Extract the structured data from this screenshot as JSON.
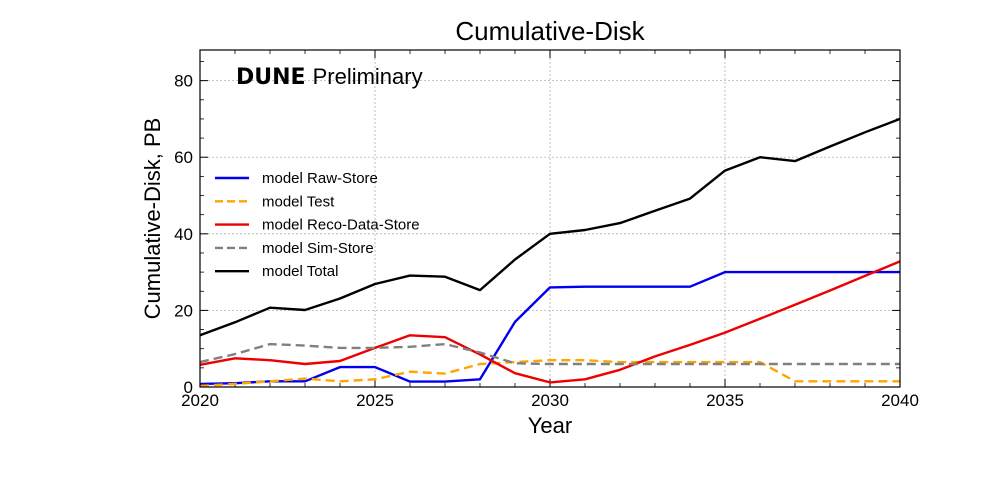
{
  "chart_data": {
    "type": "line",
    "title": "Cumulative-Disk",
    "xlabel": "Year",
    "ylabel": "Cumulative-Disk, PB",
    "annotation": {
      "bold": "DUNE",
      "regular": "Preliminary"
    },
    "xlim": [
      2020,
      2040
    ],
    "ylim": [
      0,
      88
    ],
    "xticks": [
      2020,
      2025,
      2030,
      2035,
      2040
    ],
    "yticks": [
      0,
      20,
      40,
      60,
      80
    ],
    "grid": true,
    "legend_position": "center-left",
    "x": [
      2020,
      2021,
      2022,
      2023,
      2024,
      2025,
      2026,
      2027,
      2028,
      2029,
      2030,
      2031,
      2032,
      2033,
      2034,
      2035,
      2036,
      2037,
      2038,
      2039,
      2040
    ],
    "series": [
      {
        "name": "model Raw-Store",
        "color": "#0000ee",
        "dash": "solid",
        "values": [
          0.8,
          1.0,
          1.5,
          1.5,
          5.2,
          5.2,
          1.4,
          1.4,
          2.0,
          17.0,
          26.0,
          26.2,
          26.2,
          26.2,
          26.2,
          30.0,
          30.0,
          30.0,
          30.0,
          30.0,
          30.0
        ]
      },
      {
        "name": "model Test",
        "color": "#ffa500",
        "dash": "dashed",
        "values": [
          0.3,
          0.8,
          1.5,
          2.2,
          1.5,
          2.0,
          4.0,
          3.5,
          6.0,
          6.5,
          7.0,
          7.0,
          6.5,
          6.5,
          6.5,
          6.5,
          6.5,
          1.5,
          1.5,
          1.5,
          1.5
        ]
      },
      {
        "name": "model Reco-Data-Store",
        "color": "#ee0000",
        "dash": "solid",
        "values": [
          5.8,
          7.5,
          7.0,
          6.0,
          6.8,
          10.2,
          13.5,
          13.0,
          8.5,
          3.6,
          1.2,
          2.0,
          4.5,
          8.0,
          11.0,
          14.2,
          17.8,
          21.5,
          25.2,
          29.0,
          32.8
        ]
      },
      {
        "name": "model Sim-Store",
        "color": "#808080",
        "dash": "dashed",
        "values": [
          6.5,
          8.6,
          11.2,
          10.8,
          10.2,
          10.2,
          10.5,
          11.2,
          9.0,
          6.2,
          6.0,
          6.0,
          6.0,
          6.0,
          6.0,
          6.0,
          6.0,
          6.0,
          6.0,
          6.0,
          6.0
        ]
      },
      {
        "name": "model Total",
        "color": "#000000",
        "dash": "solid",
        "values": [
          13.5,
          16.9,
          20.7,
          20.1,
          23.1,
          26.9,
          29.1,
          28.8,
          25.3,
          33.3,
          40.0,
          41.0,
          42.8,
          46.0,
          49.2,
          56.5,
          60.0,
          59.0,
          62.8,
          66.5,
          70.0
        ]
      }
    ]
  }
}
